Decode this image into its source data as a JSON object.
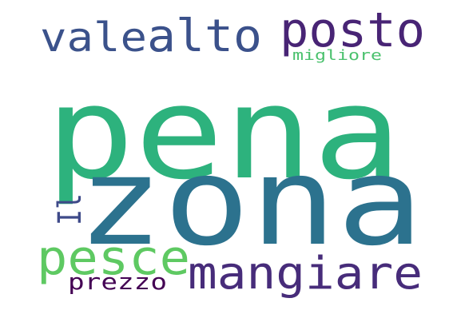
{
  "word_cloud": {
    "words": [
      {
        "key": "pena",
        "text": "pena",
        "color": "#2db27d"
      },
      {
        "key": "zona",
        "text": "zona",
        "color": "#2c728e"
      },
      {
        "key": "posto",
        "text": "posto",
        "color": "#482475"
      },
      {
        "key": "alto",
        "text": "alto",
        "color": "#3b518b"
      },
      {
        "key": "vale",
        "text": "vale",
        "color": "#3b528b"
      },
      {
        "key": "migliore",
        "text": "migliore",
        "color": "#4ac16d"
      },
      {
        "key": "il",
        "text": "Il",
        "color": "#3e4a89"
      },
      {
        "key": "pesce",
        "text": "pesce",
        "color": "#5ec962"
      },
      {
        "key": "mangiare",
        "text": "mangiare",
        "color": "#472c7a"
      },
      {
        "key": "prezzo",
        "text": "prezzo",
        "color": "#440154"
      }
    ]
  }
}
